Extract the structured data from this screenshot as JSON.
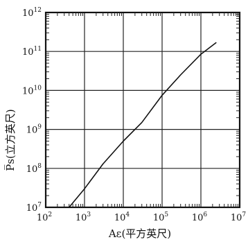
{
  "chart_data": {
    "type": "line",
    "xlabel": "Aε(平方英尺)",
    "ylabel": "P̅s(立方英尺)",
    "x_scale": "log",
    "y_scale": "log",
    "xlim": [
      100,
      10000000
    ],
    "ylim": [
      10000000,
      1000000000000
    ],
    "grid": true,
    "x_ticks": [
      {
        "base": "10",
        "exp": "2"
      },
      {
        "base": "10",
        "exp": "3"
      },
      {
        "base": "10",
        "exp": "4"
      },
      {
        "base": "10",
        "exp": "5"
      },
      {
        "base": "10",
        "exp": "6"
      },
      {
        "base": "10",
        "exp": "7"
      }
    ],
    "y_ticks": [
      {
        "base": "10",
        "exp": "7"
      },
      {
        "base": "10",
        "exp": "8"
      },
      {
        "base": "10",
        "exp": "9"
      },
      {
        "base": "10",
        "exp": "10"
      },
      {
        "base": "10",
        "exp": "11"
      },
      {
        "base": "10",
        "exp": "12"
      }
    ],
    "series": [
      {
        "x": [
          400,
          1000,
          3000,
          10000,
          30000,
          100000,
          300000,
          1000000,
          2500000
        ],
        "y": [
          10000000,
          30000000,
          130000000,
          500000000,
          1500000000,
          7500000000,
          25000000000,
          85000000000,
          170000000000
        ]
      }
    ]
  }
}
